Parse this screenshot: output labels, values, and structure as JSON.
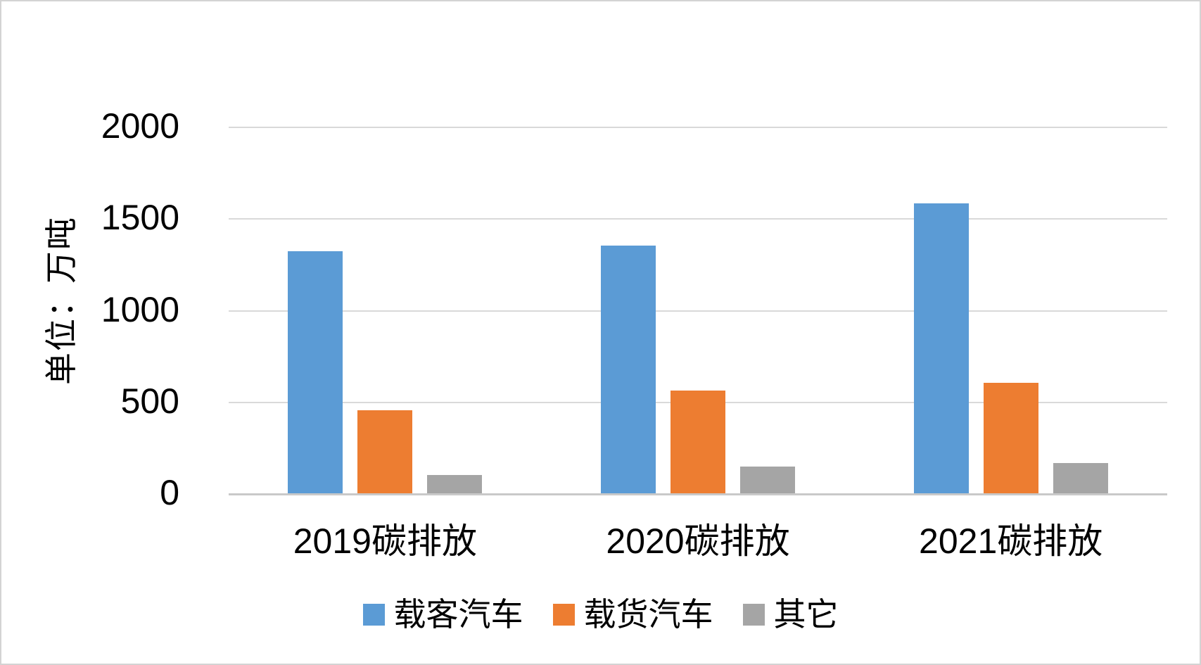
{
  "chart_data": {
    "type": "bar",
    "title": "",
    "ylabel": "单位：万吨",
    "xlabel": "",
    "categories": [
      "2019碳排放",
      "2020碳排放",
      "2021碳排放"
    ],
    "series": [
      {
        "name": "载客汽车",
        "color": "#5B9BD5",
        "values": [
          1325,
          1355,
          1585
        ]
      },
      {
        "name": "载货汽车",
        "color": "#ED7D31",
        "values": [
          455,
          565,
          605
        ]
      },
      {
        "name": "其它",
        "color": "#A5A5A5",
        "values": [
          105,
          150,
          170
        ]
      }
    ],
    "yticks": [
      0,
      500,
      1000,
      1500,
      2000
    ],
    "ylim": [
      0,
      2000
    ],
    "grid": true,
    "legend_position": "bottom",
    "colors": {
      "gridline": "#d9d9d9",
      "axis_line": "#c9c9c9",
      "text": "#000000",
      "background": "#ffffff",
      "frame_border": "#d3d3d3"
    }
  }
}
